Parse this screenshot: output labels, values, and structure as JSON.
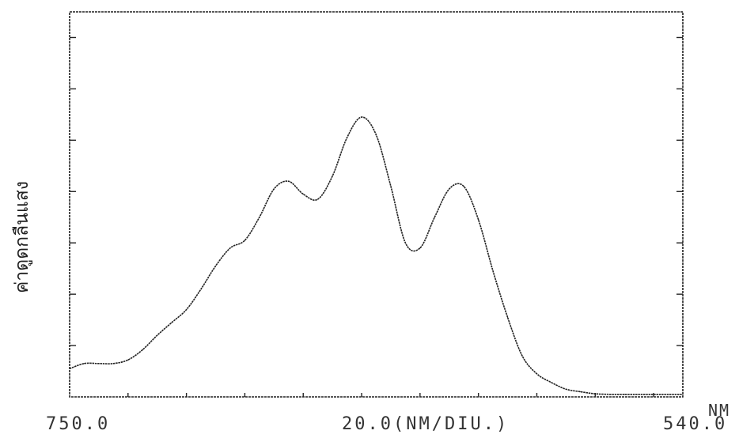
{
  "chart_data": {
    "type": "line",
    "title": "",
    "ylabel": "ค่าดูดกลืนแสง",
    "xlabel_unit": "NM",
    "x_start_label": "750.0",
    "x_end_label": "540.0",
    "x_scale_label": "20.0(NM/DIU.)",
    "xlim": [
      750,
      540
    ],
    "ylim": [
      0,
      7.5
    ],
    "grid": false,
    "line_color": "#222222",
    "series": [
      {
        "x": [
          750,
          745,
          740,
          735,
          730,
          725,
          720,
          715,
          710,
          705,
          700,
          695,
          690,
          685,
          680,
          675,
          670,
          665,
          660,
          655,
          650,
          645,
          640,
          635,
          630,
          625,
          620,
          615,
          610,
          605,
          600,
          595,
          590,
          585,
          580,
          575,
          570,
          565,
          560,
          555,
          550,
          545,
          540
        ],
        "y": [
          0.55,
          0.65,
          0.65,
          0.65,
          0.72,
          0.92,
          1.2,
          1.45,
          1.7,
          2.1,
          2.55,
          2.9,
          3.05,
          3.5,
          4.05,
          4.2,
          3.95,
          3.85,
          4.3,
          5.05,
          5.45,
          5.1,
          4.1,
          3.0,
          2.9,
          3.5,
          4.05,
          4.1,
          3.45,
          2.45,
          1.55,
          0.8,
          0.45,
          0.28,
          0.15,
          0.1,
          0.06,
          0.05,
          0.05,
          0.05,
          0.05,
          0.05,
          0.05
        ]
      }
    ]
  }
}
